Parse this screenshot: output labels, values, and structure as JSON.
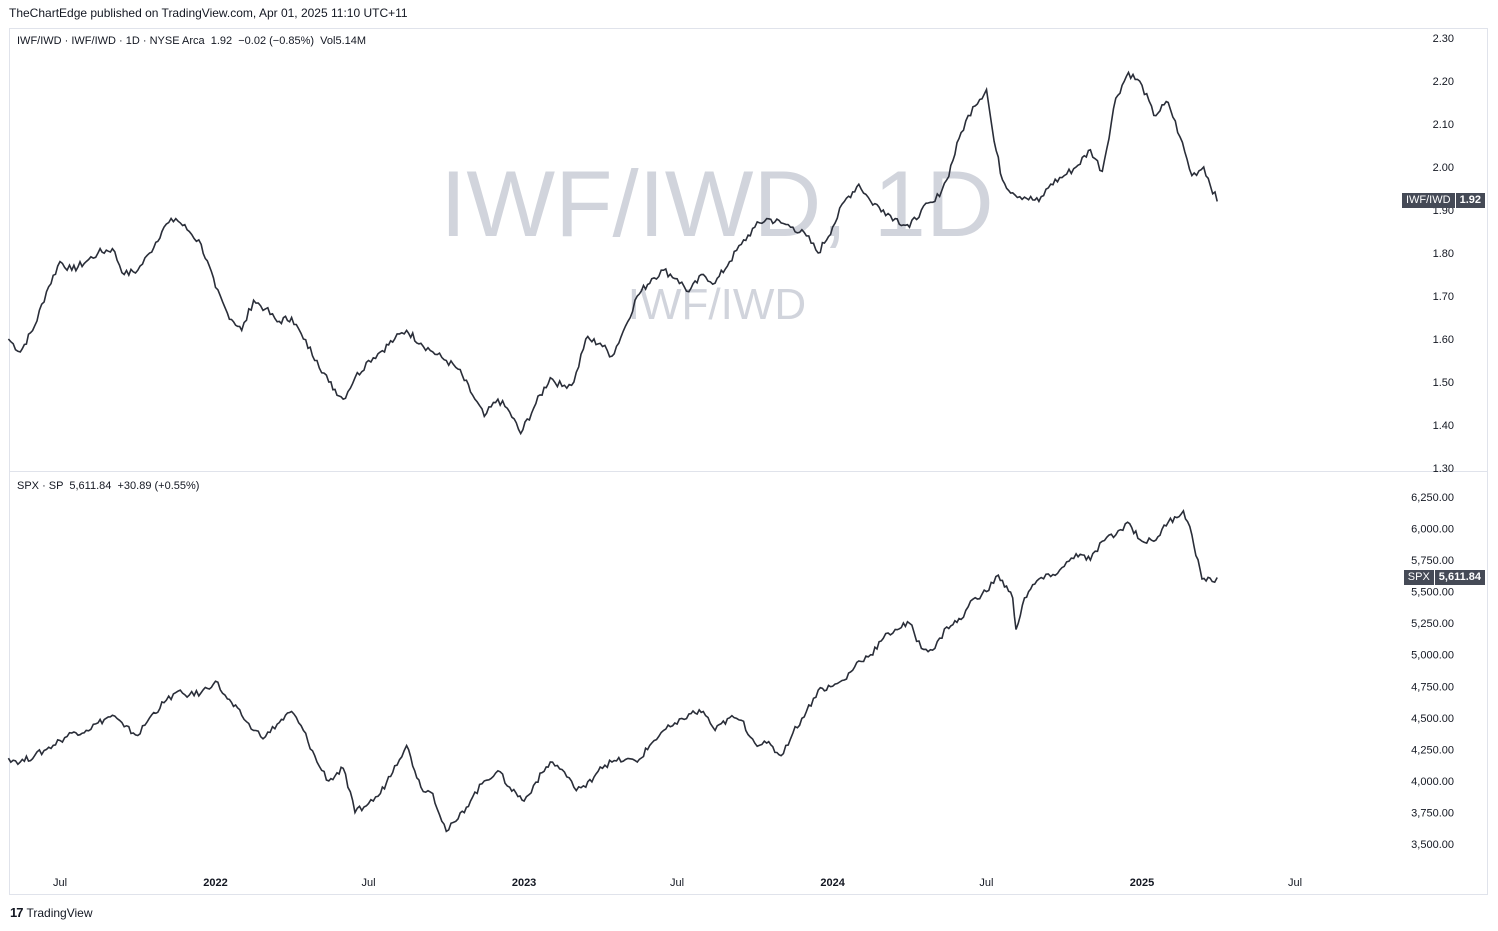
{
  "header": {
    "text": "TheChartEdge published on TradingView.com, Apr 01, 2025 11:10 UTC+11"
  },
  "footer": {
    "brand": "TradingView",
    "logo": "17"
  },
  "colors": {
    "line": "#2a2e39",
    "label_bg": "#454a56",
    "grid": "#e0e3eb",
    "watermark": "#d1d4dc"
  },
  "chart_data": [
    {
      "type": "line",
      "legend": "IWF/IWD · IWF/IWD · 1D · NYSE Arca  1.92  −0.02 (−0.85%)  Vol5.14M",
      "watermark": "IWF/IWD, 1D",
      "watermark_sub": "IWF/IWD",
      "price_label": {
        "symbol": "IWF/IWD",
        "value": "1.92"
      },
      "ylim": [
        1.3,
        2.3
      ],
      "yticks": [
        "2.30",
        "2.20",
        "2.10",
        "2.00",
        "1.90",
        "1.80",
        "1.70",
        "1.60",
        "1.50",
        "1.40",
        "1.30"
      ],
      "x": [
        "2021-05-01",
        "2021-05-15",
        "2021-06-01",
        "2021-06-15",
        "2021-07-01",
        "2021-07-15",
        "2021-08-01",
        "2021-08-15",
        "2021-09-01",
        "2021-09-15",
        "2021-10-01",
        "2021-10-15",
        "2021-11-01",
        "2021-11-15",
        "2021-12-01",
        "2021-12-15",
        "2022-01-01",
        "2022-01-15",
        "2022-02-01",
        "2022-02-15",
        "2022-03-01",
        "2022-03-15",
        "2022-04-01",
        "2022-04-15",
        "2022-05-01",
        "2022-05-15",
        "2022-06-01",
        "2022-06-15",
        "2022-07-01",
        "2022-07-15",
        "2022-08-01",
        "2022-08-15",
        "2022-09-01",
        "2022-09-15",
        "2022-10-01",
        "2022-10-15",
        "2022-11-01",
        "2022-11-15",
        "2022-12-01",
        "2022-12-15",
        "2022-12-28",
        "2023-01-15",
        "2023-02-01",
        "2023-02-15",
        "2023-03-01",
        "2023-03-15",
        "2023-04-01",
        "2023-04-15",
        "2023-05-01",
        "2023-05-15",
        "2023-06-01",
        "2023-06-15",
        "2023-07-01",
        "2023-07-15",
        "2023-08-01",
        "2023-08-15",
        "2023-09-01",
        "2023-09-15",
        "2023-10-01",
        "2023-10-15",
        "2023-11-01",
        "2023-11-15",
        "2023-12-01",
        "2023-12-15",
        "2024-01-01",
        "2024-01-15",
        "2024-02-01",
        "2024-02-15",
        "2024-03-01",
        "2024-03-15",
        "2024-04-01",
        "2024-04-15",
        "2024-05-01",
        "2024-05-15",
        "2024-06-01",
        "2024-06-15",
        "2024-07-01",
        "2024-07-10",
        "2024-07-20",
        "2024-08-01",
        "2024-08-15",
        "2024-09-01",
        "2024-09-15",
        "2024-10-01",
        "2024-10-15",
        "2024-11-01",
        "2024-11-15",
        "2024-12-01",
        "2024-12-16",
        "2025-01-01",
        "2025-01-15",
        "2025-02-01",
        "2025-02-15",
        "2025-03-01",
        "2025-03-15",
        "2025-03-31"
      ],
      "values": [
        1.6,
        1.57,
        1.63,
        1.71,
        1.78,
        1.76,
        1.78,
        1.8,
        1.81,
        1.75,
        1.76,
        1.8,
        1.86,
        1.88,
        1.85,
        1.82,
        1.72,
        1.66,
        1.62,
        1.69,
        1.67,
        1.64,
        1.65,
        1.6,
        1.55,
        1.5,
        1.46,
        1.51,
        1.55,
        1.57,
        1.6,
        1.62,
        1.59,
        1.57,
        1.55,
        1.53,
        1.47,
        1.42,
        1.46,
        1.43,
        1.38,
        1.45,
        1.51,
        1.49,
        1.5,
        1.6,
        1.59,
        1.56,
        1.63,
        1.7,
        1.74,
        1.76,
        1.74,
        1.71,
        1.75,
        1.73,
        1.78,
        1.82,
        1.86,
        1.88,
        1.87,
        1.86,
        1.84,
        1.8,
        1.86,
        1.92,
        1.96,
        1.92,
        1.9,
        1.88,
        1.86,
        1.9,
        1.92,
        1.97,
        2.08,
        2.14,
        2.18,
        2.06,
        1.97,
        1.94,
        1.93,
        1.92,
        1.96,
        1.98,
        2.0,
        2.04,
        1.99,
        2.16,
        2.22,
        2.19,
        2.12,
        2.15,
        2.07,
        1.98,
        2.0,
        1.92
      ]
    },
    {
      "type": "line",
      "legend": "SPX · SP  5,611.84  +30.89 (+0.55%)",
      "price_label": {
        "symbol": "SPX",
        "value": "5,611.84"
      },
      "ylim": [
        3375,
        6325
      ],
      "yticks": [
        "6,250.00",
        "6,000.00",
        "5,750.00",
        "5,500.00",
        "5,250.00",
        "5,000.00",
        "4,750.00",
        "4,500.00",
        "4,250.00",
        "4,000.00",
        "3,750.00",
        "3,500.00"
      ],
      "x": [
        "2021-05-01",
        "2021-05-15",
        "2021-06-01",
        "2021-06-15",
        "2021-07-01",
        "2021-07-15",
        "2021-08-01",
        "2021-08-15",
        "2021-09-01",
        "2021-09-15",
        "2021-10-01",
        "2021-10-15",
        "2021-11-01",
        "2021-11-15",
        "2021-12-01",
        "2021-12-15",
        "2022-01-01",
        "2022-01-15",
        "2022-02-01",
        "2022-02-15",
        "2022-03-01",
        "2022-03-15",
        "2022-04-01",
        "2022-04-15",
        "2022-05-01",
        "2022-05-15",
        "2022-06-01",
        "2022-06-15",
        "2022-07-01",
        "2022-07-15",
        "2022-08-01",
        "2022-08-15",
        "2022-09-01",
        "2022-09-15",
        "2022-10-01",
        "2022-10-15",
        "2022-11-01",
        "2022-11-15",
        "2022-12-01",
        "2022-12-15",
        "2023-01-01",
        "2023-01-15",
        "2023-02-01",
        "2023-02-15",
        "2023-03-01",
        "2023-03-15",
        "2023-04-01",
        "2023-04-15",
        "2023-05-01",
        "2023-05-15",
        "2023-06-01",
        "2023-06-15",
        "2023-07-01",
        "2023-07-15",
        "2023-08-01",
        "2023-08-15",
        "2023-09-01",
        "2023-09-15",
        "2023-10-01",
        "2023-10-15",
        "2023-11-01",
        "2023-11-15",
        "2023-12-01",
        "2023-12-15",
        "2024-01-01",
        "2024-01-15",
        "2024-02-01",
        "2024-02-15",
        "2024-03-01",
        "2024-03-15",
        "2024-04-01",
        "2024-04-15",
        "2024-05-01",
        "2024-05-15",
        "2024-06-01",
        "2024-06-15",
        "2024-07-01",
        "2024-07-15",
        "2024-08-01",
        "2024-08-05",
        "2024-08-15",
        "2024-09-01",
        "2024-09-15",
        "2024-10-01",
        "2024-10-15",
        "2024-11-01",
        "2024-11-15",
        "2024-12-01",
        "2024-12-15",
        "2025-01-01",
        "2025-01-15",
        "2025-02-01",
        "2025-02-19",
        "2025-03-01",
        "2025-03-13",
        "2025-03-25",
        "2025-03-31"
      ],
      "values": [
        4180,
        4150,
        4200,
        4250,
        4320,
        4380,
        4400,
        4460,
        4520,
        4430,
        4360,
        4500,
        4620,
        4700,
        4680,
        4700,
        4790,
        4650,
        4520,
        4400,
        4350,
        4450,
        4550,
        4400,
        4150,
        4000,
        4100,
        3750,
        3820,
        3900,
        4120,
        4280,
        3950,
        3900,
        3600,
        3700,
        3870,
        4000,
        4080,
        3950,
        3840,
        3990,
        4150,
        4090,
        3950,
        3950,
        4110,
        4150,
        4170,
        4150,
        4300,
        4400,
        4450,
        4530,
        4550,
        4400,
        4500,
        4480,
        4300,
        4300,
        4200,
        4380,
        4550,
        4720,
        4750,
        4800,
        4950,
        5000,
        5130,
        5200,
        5250,
        5050,
        5050,
        5220,
        5280,
        5440,
        5500,
        5630,
        5450,
        5200,
        5450,
        5600,
        5620,
        5700,
        5800,
        5750,
        5900,
        5950,
        6050,
        5900,
        5900,
        6050,
        6140,
        5950,
        5600,
        5580,
        5611.84
      ]
    }
  ],
  "x_axis": {
    "ticks": [
      {
        "label": "Jul",
        "date": "2021-07-01",
        "bold": false
      },
      {
        "label": "2022",
        "date": "2022-01-01",
        "bold": true
      },
      {
        "label": "Jul",
        "date": "2022-07-01",
        "bold": false
      },
      {
        "label": "2023",
        "date": "2023-01-01",
        "bold": true
      },
      {
        "label": "Jul",
        "date": "2023-07-01",
        "bold": false
      },
      {
        "label": "2024",
        "date": "2024-01-01",
        "bold": true
      },
      {
        "label": "Jul",
        "date": "2024-07-01",
        "bold": false
      },
      {
        "label": "2025",
        "date": "2025-01-01",
        "bold": true
      },
      {
        "label": "Jul",
        "date": "2025-07-01",
        "bold": false
      }
    ]
  }
}
